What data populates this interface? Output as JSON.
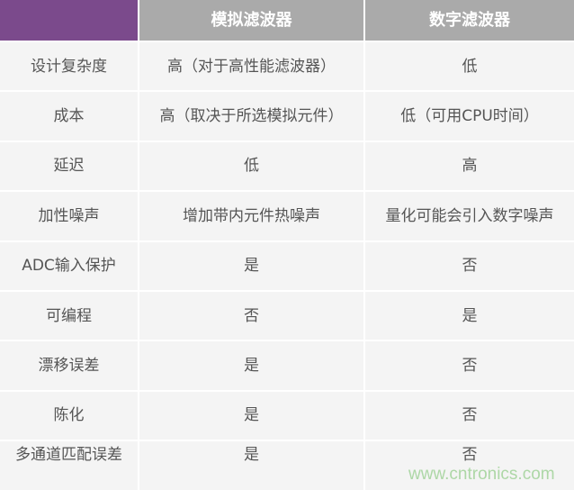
{
  "header": {
    "col1": "",
    "col2": "模拟滤波器",
    "col3": "数字滤波器"
  },
  "rows": [
    [
      "设计复杂度",
      "高（对于高性能滤波器）",
      "低"
    ],
    [
      "成本",
      "高（取决于所选模拟元件）",
      "低（可用CPU时间）"
    ],
    [
      "延迟",
      "低",
      "高"
    ],
    [
      "加性噪声",
      "增加带内元件热噪声",
      "量化可能会引入数字噪声"
    ],
    [
      "ADC输入保护",
      "是",
      "否"
    ],
    [
      "可编程",
      "否",
      "是"
    ],
    [
      "漂移误差",
      "是",
      "否"
    ],
    [
      "陈化",
      "是",
      "否"
    ],
    [
      "多通道匹配误差",
      "是",
      "否"
    ]
  ],
  "watermark": "www.cntronics.com",
  "colors": {
    "corner": "#7b4a8c",
    "header": "#aaaaaa",
    "row": "#f4f4f4"
  }
}
